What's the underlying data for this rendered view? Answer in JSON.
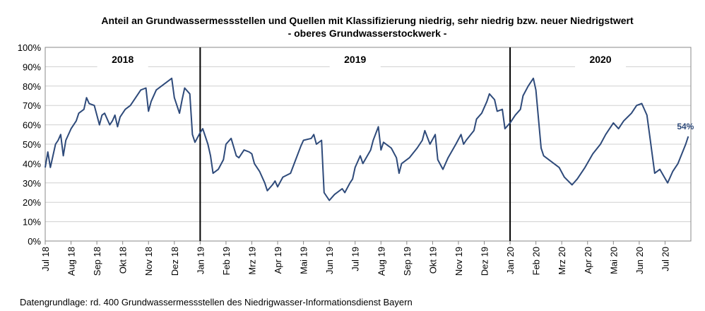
{
  "chart_data": {
    "type": "line",
    "title": "Anteil an Grundwassermessstellen und Quellen mit Klassifizierung niedrig, sehr niedrig bzw. neuer Niedrigstwert",
    "subtitle": "- oberes Grundwasserstockwerk -",
    "source": "Datengrundlage:  rd. 400 Grundwassermessstellen  des Niedrigwasser-Informationsdienst  Bayern",
    "year_labels": [
      "2018",
      "2019",
      "2020"
    ],
    "vlines": [
      6,
      18
    ],
    "end_label": "54%",
    "xlim": [
      0,
      25
    ],
    "xticks": [
      {
        "value": 0,
        "label": "Jul 18"
      },
      {
        "value": 1,
        "label": "Aug 18"
      },
      {
        "value": 2,
        "label": "Sep 18"
      },
      {
        "value": 3,
        "label": "Okt 18"
      },
      {
        "value": 4,
        "label": "Nov 18"
      },
      {
        "value": 5,
        "label": "Dez 18"
      },
      {
        "value": 6,
        "label": "Jan 19"
      },
      {
        "value": 7,
        "label": "Feb 19"
      },
      {
        "value": 8,
        "label": "Mrz 19"
      },
      {
        "value": 9,
        "label": "Apr 19"
      },
      {
        "value": 10,
        "label": "Mai 19"
      },
      {
        "value": 11,
        "label": "Jun 19"
      },
      {
        "value": 12,
        "label": "Jul 19"
      },
      {
        "value": 13,
        "label": "Aug 19"
      },
      {
        "value": 14,
        "label": "Sep 19"
      },
      {
        "value": 15,
        "label": "Okt 19"
      },
      {
        "value": 16,
        "label": "Nov 19"
      },
      {
        "value": 17,
        "label": "Dez 19"
      },
      {
        "value": 18,
        "label": "Jan 20"
      },
      {
        "value": 19,
        "label": "Feb 20"
      },
      {
        "value": 20,
        "label": "Mrz 20"
      },
      {
        "value": 21,
        "label": "Apr 20"
      },
      {
        "value": 22,
        "label": "Mai 20"
      },
      {
        "value": 23,
        "label": "Jun 20"
      },
      {
        "value": 24,
        "label": "Jul 20"
      }
    ],
    "ylim": [
      0,
      100
    ],
    "yticks": [
      {
        "value": 0,
        "label": "0%"
      },
      {
        "value": 10,
        "label": "10%"
      },
      {
        "value": 20,
        "label": "20%"
      },
      {
        "value": 30,
        "label": "30%"
      },
      {
        "value": 40,
        "label": "40%"
      },
      {
        "value": 50,
        "label": "50%"
      },
      {
        "value": 60,
        "label": "60%"
      },
      {
        "value": 70,
        "label": "70%"
      },
      {
        "value": 80,
        "label": "80%"
      },
      {
        "value": 90,
        "label": "90%"
      },
      {
        "value": 100,
        "label": "100%"
      }
    ],
    "grid": true,
    "x": [
      0,
      0.1,
      0.2,
      0.4,
      0.5,
      0.6,
      0.7,
      0.8,
      1.0,
      1.2,
      1.3,
      1.5,
      1.6,
      1.7,
      1.9,
      2.1,
      2.2,
      2.3,
      2.5,
      2.6,
      2.7,
      2.8,
      2.9,
      3.1,
      3.3,
      3.5,
      3.7,
      3.9,
      4.0,
      4.1,
      4.3,
      4.5,
      4.8,
      4.9,
      5.0,
      5.2,
      5.3,
      5.4,
      5.6,
      5.7,
      5.8,
      6.0,
      6.1,
      6.3,
      6.4,
      6.5,
      6.7,
      6.9,
      7.0,
      7.2,
      7.4,
      7.5,
      7.7,
      7.9,
      8.0,
      8.1,
      8.3,
      8.5,
      8.6,
      8.8,
      8.9,
      9.0,
      9.2,
      9.5,
      9.7,
      9.9,
      10.0,
      10.3,
      10.4,
      10.5,
      10.7,
      10.8,
      11.0,
      11.2,
      11.5,
      11.6,
      11.8,
      11.9,
      12.0,
      12.2,
      12.3,
      12.6,
      12.7,
      12.9,
      13.0,
      13.1,
      13.4,
      13.6,
      13.7,
      13.8,
      14.1,
      14.4,
      14.6,
      14.7,
      14.9,
      15.1,
      15.2,
      15.4,
      15.6,
      15.9,
      16.1,
      16.2,
      16.3,
      16.6,
      16.7,
      16.9,
      17.1,
      17.2,
      17.4,
      17.5,
      17.7,
      17.8,
      18.0,
      18.2,
      18.4,
      18.5,
      18.7,
      18.9,
      19.0,
      19.2,
      19.3,
      19.5,
      19.7,
      19.9,
      20.1,
      20.4,
      20.6,
      20.9,
      21.2,
      21.5,
      21.7,
      22.0,
      22.2,
      22.4,
      22.7,
      22.9,
      23.1,
      23.3,
      23.4,
      23.6,
      23.8,
      24.1,
      24.3,
      24.5,
      24.8,
      24.9
    ],
    "series": [
      {
        "name": "Anteil",
        "color": "#2e4a7a",
        "values": [
          38,
          46,
          38,
          50,
          52,
          55,
          44,
          52,
          58,
          62,
          66,
          68,
          74,
          71,
          70,
          60,
          65,
          66,
          60,
          62,
          65,
          59,
          64,
          68,
          70,
          74,
          78,
          79,
          67,
          72,
          78,
          80,
          83,
          84,
          74,
          66,
          73,
          79,
          76,
          55,
          51,
          56,
          58,
          50,
          44,
          35,
          37,
          42,
          50,
          53,
          44,
          43,
          47,
          46,
          45,
          40,
          36,
          30,
          26,
          29,
          31,
          28,
          33,
          35,
          42,
          49,
          52,
          53,
          55,
          50,
          52,
          25,
          21,
          24,
          27,
          25,
          30,
          32,
          38,
          44,
          40,
          47,
          52,
          59,
          47,
          51,
          48,
          43,
          35,
          40,
          43,
          48,
          52,
          57,
          50,
          55,
          42,
          37,
          43,
          50,
          55,
          50,
          52,
          57,
          63,
          66,
          72,
          76,
          73,
          67,
          68,
          58,
          61,
          65,
          68,
          75,
          80,
          84,
          78,
          48,
          44,
          42,
          40,
          38,
          33,
          29,
          32,
          38,
          45,
          50,
          55,
          61,
          58,
          62,
          66,
          70,
          71,
          65,
          55,
          35,
          37,
          30,
          36,
          40,
          50,
          54
        ]
      }
    ]
  }
}
